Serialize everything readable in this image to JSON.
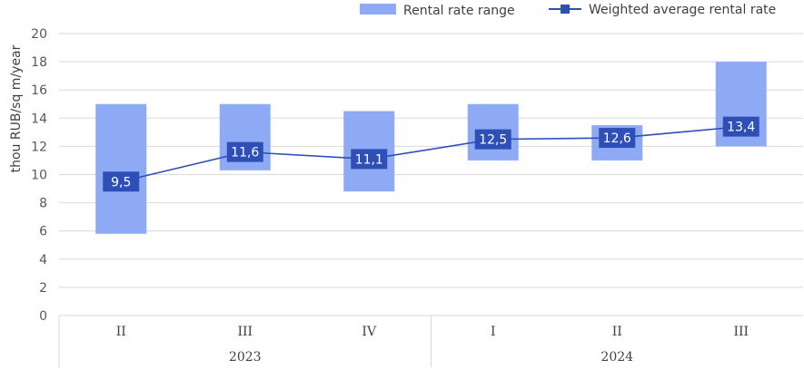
{
  "chart_data": {
    "type": "bar",
    "ylabel": "thou RUB/sq m/year",
    "ylim": [
      0,
      20
    ],
    "yticks": [
      0,
      2,
      4,
      6,
      8,
      10,
      12,
      14,
      16,
      18,
      20
    ],
    "grid": true,
    "legend_position": "top-right",
    "categories": [
      "II",
      "III",
      "IV",
      "I",
      "II",
      "III"
    ],
    "groups": [
      {
        "label": "2023",
        "span": 3
      },
      {
        "label": "2024",
        "span": 3
      }
    ],
    "series": [
      {
        "name": "Rental rate range",
        "kind": "floating-bar",
        "color": "#8faaf5",
        "low": [
          5.8,
          10.3,
          8.8,
          11.0,
          11.0,
          12.0
        ],
        "high": [
          15.0,
          15.0,
          14.5,
          15.0,
          13.5,
          18.0
        ]
      },
      {
        "name": "Weighted average rental rate",
        "kind": "line",
        "color": "#2e4fb8",
        "label_color": "#2e4fb8",
        "values": [
          9.5,
          11.6,
          11.1,
          12.5,
          12.6,
          13.4
        ],
        "labels": [
          "9,5",
          "11,6",
          "11,1",
          "12,5",
          "12,6",
          "13,4"
        ]
      }
    ]
  }
}
